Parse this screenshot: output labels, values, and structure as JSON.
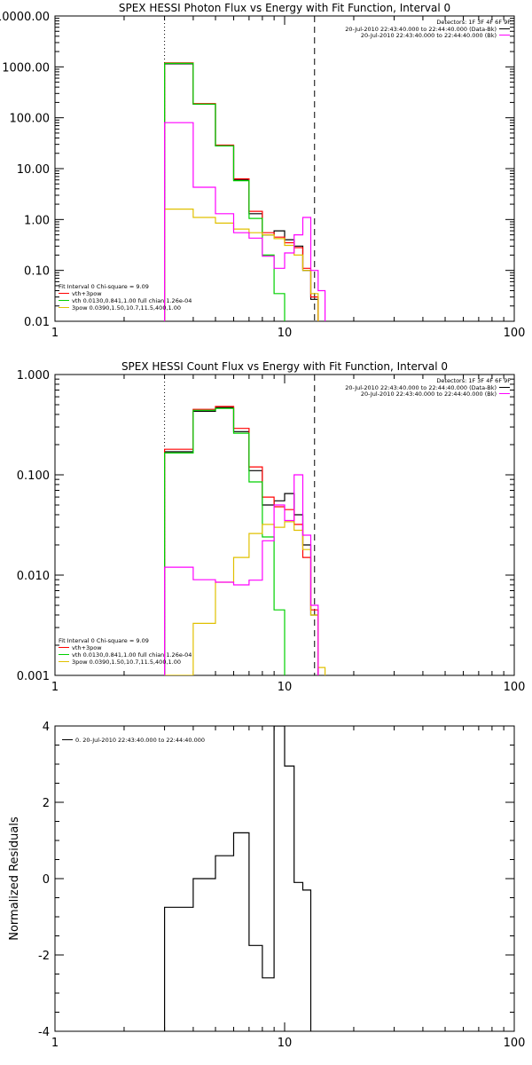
{
  "colors": {
    "background": "#ffffff",
    "axes": "#000000",
    "data": "#000000",
    "total_fit": "#ff0000",
    "bk_subtracted": "#ff00ff",
    "vth": "#00d000",
    "3pow": "#e0c000"
  },
  "chart_data": [
    {
      "type": "line",
      "title": "SPEX HESSI Photon Flux vs Energy with Fit Function, Interval 0",
      "xscale": "log",
      "yscale": "log",
      "xlim": [
        1,
        100
      ],
      "ylim": [
        0.01,
        10000
      ],
      "xticks": [
        1,
        10,
        100
      ],
      "xtick_labels": [
        "1",
        "10",
        "100"
      ],
      "yticks": [
        0.01,
        0.1,
        1,
        10,
        100,
        1000,
        10000
      ],
      "ytick_labels": [
        "0.01",
        "0.10",
        "1.00",
        "10.00",
        "100.00",
        "1000.00",
        "10000.00"
      ],
      "vlines": [
        {
          "x": 3,
          "style": "dotted"
        },
        {
          "x": 13.5,
          "style": "dashed"
        }
      ],
      "legend_right": {
        "placement": "top-right",
        "title": "Detectors: 1F 3F 4F 6F 9F",
        "entries": [
          {
            "text": "20-Jul-2010 22:43:40.000 to 22:44:40.000 (Data-Bk)",
            "color": "#000000"
          },
          {
            "text": "20-Jul-2010 22:43:40.000 to 22:44:40.000 (Bk)",
            "color": "#ff00ff"
          }
        ]
      },
      "legend_left": {
        "placement": "bottom-left",
        "title": "Fit Interval 0   Chi-square = 9.09",
        "entries": [
          {
            "text": "vth+3pow",
            "color": "#ff0000"
          },
          {
            "text": "vth 0.0130,0.841,1.00  full chian 1.26e-04",
            "color": "#00d000"
          },
          {
            "text": "3pow 0.0390,1.50,10.7,11.5,400,1.00",
            "color": "#e0c000"
          }
        ]
      },
      "edges": [
        3,
        4,
        5,
        6,
        7,
        8,
        9,
        10,
        11,
        12,
        13,
        14,
        15
      ],
      "series": [
        {
          "name": "Data-Bk",
          "color": "#000000",
          "values": [
            1150,
            185,
            28,
            6,
            1.3,
            0.5,
            0.6,
            0.4,
            0.3,
            0.1,
            0.027,
            null
          ]
        },
        {
          "name": "vth+3pow",
          "color": "#ff0000",
          "values": [
            1200,
            190,
            29,
            6.3,
            1.45,
            0.55,
            0.45,
            0.35,
            0.28,
            0.11,
            0.03,
            null
          ]
        },
        {
          "name": "vth",
          "color": "#00d000",
          "values": [
            1170,
            185,
            28,
            5.8,
            1.05,
            0.2,
            0.035,
            0.008,
            null,
            null,
            null,
            null
          ]
        },
        {
          "name": "3pow",
          "color": "#e0c000",
          "values": [
            1.6,
            1.1,
            0.85,
            0.65,
            0.55,
            0.5,
            0.42,
            0.31,
            0.2,
            0.1,
            0.035,
            0.008
          ]
        },
        {
          "name": "Bk",
          "color": "#ff00ff",
          "values": [
            80,
            4.3,
            1.3,
            0.55,
            0.43,
            0.19,
            0.11,
            0.22,
            0.5,
            1.1,
            0.1,
            0.04
          ]
        }
      ]
    },
    {
      "type": "line",
      "title": "SPEX HESSI Count Flux vs Energy with Fit Function, Interval 0",
      "xscale": "log",
      "yscale": "log",
      "xlim": [
        1,
        100
      ],
      "ylim": [
        0.001,
        1
      ],
      "xticks": [
        1,
        10,
        100
      ],
      "xtick_labels": [
        "1",
        "10",
        "100"
      ],
      "yticks": [
        0.001,
        0.01,
        0.1,
        1
      ],
      "ytick_labels": [
        "0.001",
        "0.010",
        "0.100",
        "1.000"
      ],
      "vlines": [
        {
          "x": 3,
          "style": "dotted"
        },
        {
          "x": 13.5,
          "style": "dashed"
        }
      ],
      "legend_right": {
        "placement": "top-right",
        "title": "Detectors: 1F 3F 4F 6F 9F",
        "entries": [
          {
            "text": "20-Jul-2010 22:43:40.000 to 22:44:40.000 (Data-Bk)",
            "color": "#000000"
          },
          {
            "text": "20-Jul-2010 22:43:40.000 to 22:44:40.000 (Bk)",
            "color": "#ff00ff"
          }
        ]
      },
      "legend_left": {
        "placement": "bottom-left",
        "title": "Fit Interval 0   Chi-square = 9.09",
        "entries": [
          {
            "text": "vth+3pow",
            "color": "#ff0000"
          },
          {
            "text": "vth 0.0130,0.841,1.00  full chian 1.26e-04",
            "color": "#00d000"
          },
          {
            "text": "3pow 0.0390,1.50,10.7,11.5,400,1.00",
            "color": "#e0c000"
          }
        ]
      },
      "edges": [
        3,
        4,
        5,
        6,
        7,
        8,
        9,
        10,
        11,
        12,
        13,
        14,
        15
      ],
      "series": [
        {
          "name": "Data-Bk",
          "color": "#000000",
          "values": [
            0.17,
            0.43,
            0.47,
            0.27,
            0.11,
            0.05,
            0.055,
            0.065,
            0.04,
            0.02,
            0.004,
            null
          ]
        },
        {
          "name": "vth+3pow",
          "color": "#ff0000",
          "values": [
            0.18,
            0.45,
            0.48,
            0.29,
            0.12,
            0.06,
            0.048,
            0.045,
            0.032,
            0.015,
            0.0045,
            null
          ]
        },
        {
          "name": "vth",
          "color": "#00d000",
          "values": [
            0.165,
            0.44,
            0.46,
            0.26,
            0.085,
            0.024,
            0.0045,
            null,
            null,
            null,
            null,
            null
          ]
        },
        {
          "name": "3pow",
          "color": "#e0c000",
          "values": [
            0.001,
            0.0033,
            0.0085,
            0.015,
            0.026,
            0.032,
            0.03,
            0.034,
            0.028,
            0.018,
            0.004,
            0.0012
          ]
        },
        {
          "name": "Bk",
          "color": "#ff00ff",
          "values": [
            0.012,
            0.009,
            0.0085,
            0.008,
            0.0089,
            0.022,
            0.05,
            0.035,
            0.1,
            0.025,
            0.005,
            null
          ]
        }
      ]
    },
    {
      "type": "line",
      "title": "",
      "ylabel": "Normalized Residuals",
      "xscale": "log",
      "yscale": "linear",
      "xlim": [
        1,
        100
      ],
      "ylim": [
        -4,
        4
      ],
      "xticks": [
        1,
        10,
        100
      ],
      "xtick_labels": [
        "1",
        "10",
        "100"
      ],
      "yticks": [
        -4,
        -2,
        0,
        2,
        4
      ],
      "ytick_labels": [
        "-4",
        "-2",
        "0",
        "2",
        "4"
      ],
      "legend": {
        "placement": "top-left",
        "entries": [
          {
            "text": "0. 20-Jul-2010 22:43:40.000 to 22:44:40.000",
            "color": "#000000"
          }
        ]
      },
      "edges": [
        3,
        4,
        5,
        6,
        7,
        8,
        9,
        10,
        11,
        12,
        13
      ],
      "series": [
        {
          "name": "0. 20-Jul-2010 22:43:40.000 to 22:44:40.000",
          "color": "#000000",
          "values": [
            -0.75,
            0.0,
            0.6,
            1.2,
            -1.75,
            -2.6,
            4.0,
            2.95,
            -0.1,
            -0.3
          ]
        }
      ]
    }
  ]
}
